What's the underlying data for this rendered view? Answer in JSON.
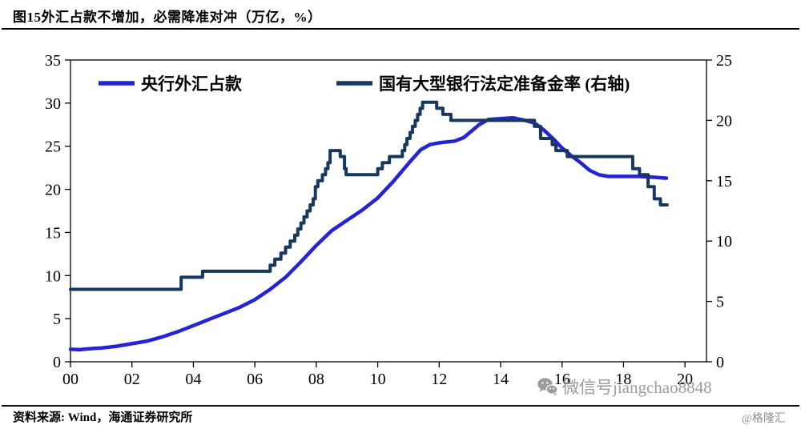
{
  "header": {
    "title": "图15外汇占款不增加，必需降准对冲（万亿，%）"
  },
  "footer": {
    "source": "资料来源: Wind，海通证券研究所"
  },
  "watermark": {
    "wechat_id": "微信号jiangchao8848",
    "site": "@格隆汇"
  },
  "chart_data": {
    "type": "line",
    "title": "图15外汇占款不增加，必需降准对冲（万亿，%）",
    "grid": false,
    "legend_position": "top",
    "x_axis": {
      "range": [
        2000,
        2020.7
      ],
      "tick_years": [
        2000,
        2002,
        2004,
        2006,
        2008,
        2010,
        2012,
        2014,
        2016,
        2018,
        2020
      ],
      "tick_labels": [
        "00",
        "02",
        "04",
        "06",
        "08",
        "10",
        "12",
        "14",
        "16",
        "18",
        "20"
      ]
    },
    "y_left": {
      "unit": "万亿",
      "range": [
        0,
        35
      ],
      "ticks": [
        0,
        5,
        10,
        15,
        20,
        25,
        30,
        35
      ]
    },
    "y_right": {
      "unit": "%",
      "range": [
        0,
        25
      ],
      "ticks": [
        0,
        5,
        10,
        15,
        20,
        25
      ]
    },
    "series": [
      {
        "name": "央行外汇占款",
        "axis": "left",
        "style": "line",
        "color": "#2424d6",
        "width": 4.5,
        "points": [
          [
            2000,
            1.45
          ],
          [
            2000.3,
            1.4
          ],
          [
            2000.6,
            1.5
          ],
          [
            2001,
            1.6
          ],
          [
            2001.5,
            1.8
          ],
          [
            2002,
            2.1
          ],
          [
            2002.5,
            2.4
          ],
          [
            2003,
            2.9
          ],
          [
            2003.5,
            3.5
          ],
          [
            2004,
            4.2
          ],
          [
            2004.5,
            4.9
          ],
          [
            2005,
            5.6
          ],
          [
            2005.5,
            6.3
          ],
          [
            2006,
            7.2
          ],
          [
            2006.5,
            8.4
          ],
          [
            2007,
            9.8
          ],
          [
            2007.5,
            11.6
          ],
          [
            2008,
            13.5
          ],
          [
            2008.5,
            15.2
          ],
          [
            2009,
            16.4
          ],
          [
            2009.5,
            17.6
          ],
          [
            2010,
            19.0
          ],
          [
            2010.5,
            20.9
          ],
          [
            2011,
            23.0
          ],
          [
            2011.4,
            24.6
          ],
          [
            2011.7,
            25.2
          ],
          [
            2012,
            25.4
          ],
          [
            2012.5,
            25.6
          ],
          [
            2012.8,
            26.0
          ],
          [
            2013,
            26.6
          ],
          [
            2013.3,
            27.5
          ],
          [
            2013.6,
            28.1
          ],
          [
            2014,
            28.2
          ],
          [
            2014.4,
            28.3
          ],
          [
            2014.8,
            28.0
          ],
          [
            2015.1,
            27.7
          ],
          [
            2015.4,
            26.9
          ],
          [
            2015.7,
            25.9
          ],
          [
            2016,
            24.8
          ],
          [
            2016.3,
            23.9
          ],
          [
            2016.6,
            23.1
          ],
          [
            2016.9,
            22.2
          ],
          [
            2017.2,
            21.7
          ],
          [
            2017.5,
            21.5
          ],
          [
            2018,
            21.5
          ],
          [
            2018.5,
            21.5
          ],
          [
            2019,
            21.4
          ],
          [
            2019.4,
            21.3
          ]
        ]
      },
      {
        "name": "国有大型银行法定准备金率 (右轴)",
        "axis": "right",
        "style": "step",
        "color": "#17375e",
        "width": 4,
        "points": [
          [
            2000,
            6
          ],
          [
            2003.6,
            7
          ],
          [
            2004.3,
            7.5
          ],
          [
            2006.5,
            8
          ],
          [
            2006.65,
            8.5
          ],
          [
            2006.85,
            9
          ],
          [
            2007.0,
            9.5
          ],
          [
            2007.15,
            10
          ],
          [
            2007.3,
            10.5
          ],
          [
            2007.4,
            11
          ],
          [
            2007.5,
            11.5
          ],
          [
            2007.6,
            12
          ],
          [
            2007.7,
            12.5
          ],
          [
            2007.8,
            13
          ],
          [
            2007.9,
            13.5
          ],
          [
            2007.97,
            14.5
          ],
          [
            2008.05,
            15
          ],
          [
            2008.2,
            15.5
          ],
          [
            2008.3,
            16
          ],
          [
            2008.38,
            16.5
          ],
          [
            2008.45,
            17.5
          ],
          [
            2008.78,
            17
          ],
          [
            2008.92,
            16
          ],
          [
            2008.97,
            15.5
          ],
          [
            2010.0,
            16
          ],
          [
            2010.15,
            16.5
          ],
          [
            2010.38,
            17
          ],
          [
            2010.8,
            17.5
          ],
          [
            2010.88,
            18
          ],
          [
            2010.95,
            18.5
          ],
          [
            2011.05,
            19
          ],
          [
            2011.13,
            19.5
          ],
          [
            2011.22,
            20
          ],
          [
            2011.3,
            20.5
          ],
          [
            2011.38,
            21
          ],
          [
            2011.46,
            21.5
          ],
          [
            2011.92,
            21
          ],
          [
            2012.12,
            20.5
          ],
          [
            2012.38,
            20
          ],
          [
            2015.1,
            19.5
          ],
          [
            2015.3,
            18.5
          ],
          [
            2015.68,
            18
          ],
          [
            2015.8,
            17.5
          ],
          [
            2016.17,
            17
          ],
          [
            2018.3,
            16
          ],
          [
            2018.52,
            15.5
          ],
          [
            2018.8,
            14.5
          ],
          [
            2019.0,
            13.5
          ],
          [
            2019.2,
            13
          ],
          [
            2019.42,
            13
          ]
        ]
      }
    ]
  }
}
